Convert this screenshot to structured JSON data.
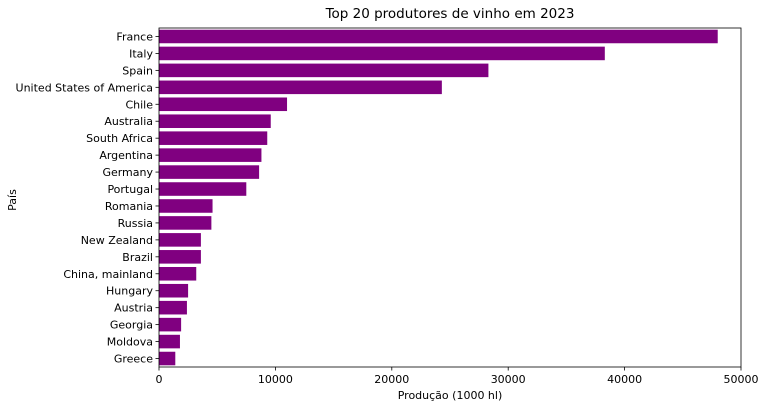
{
  "chart_data": {
    "type": "bar",
    "orientation": "horizontal",
    "title": "Top 20 produtores de vinho em 2023",
    "xlabel": "Produção (1000 hl)",
    "ylabel": "País",
    "xlim": [
      0,
      50000
    ],
    "xticks": [
      0,
      10000,
      20000,
      30000,
      40000,
      50000
    ],
    "xtick_labels": [
      "0",
      "10000",
      "20000",
      "30000",
      "40000",
      "50000"
    ],
    "grid": false,
    "bar_color": "#800080",
    "categories": [
      "France",
      "Italy",
      "Spain",
      "United States of America",
      "Chile",
      "Australia",
      "South Africa",
      "Argentina",
      "Germany",
      "Portugal",
      "Romania",
      "Russia",
      "New Zealand",
      "Brazil",
      "China, mainland",
      "Hungary",
      "Austria",
      "Georgia",
      "Moldova",
      "Greece"
    ],
    "values": [
      48000,
      38300,
      28300,
      24300,
      11000,
      9600,
      9300,
      8800,
      8600,
      7500,
      4600,
      4500,
      3600,
      3600,
      3200,
      2500,
      2400,
      1900,
      1800,
      1400
    ]
  }
}
